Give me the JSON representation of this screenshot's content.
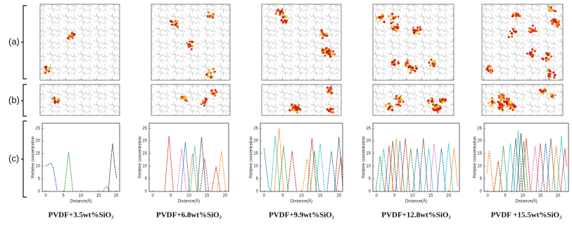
{
  "panel_labels": [
    "(a)",
    "(b)",
    "(c)"
  ],
  "chart_data": [
    {
      "type": "line",
      "title": "PVDF+3.5wt%SiO₂",
      "x_label": "Distance(Å)",
      "y_label": "Relative concentration",
      "xlim": [
        -1,
        21
      ],
      "xticks": [
        0,
        5,
        10,
        15,
        20
      ],
      "ylim": [
        0,
        27
      ],
      "yticks": [
        0,
        5,
        10,
        15,
        20,
        25
      ],
      "series": [
        {
          "color": "#1f5fa8",
          "x": [
            0,
            0.5,
            1,
            1.6,
            2.2,
            2.8,
            3.2
          ],
          "values": [
            10,
            10.5,
            11,
            11,
            9,
            4,
            0.5
          ]
        },
        {
          "color": "#2ca02c",
          "x": [
            5.3,
            5.9,
            6.5,
            7.1,
            7.7
          ],
          "values": [
            0,
            8,
            15.5,
            8,
            0
          ]
        },
        {
          "color": "#777777",
          "x": [
            16.1,
            16.7,
            17.3,
            17.9,
            18.5
          ],
          "values": [
            0,
            1,
            2,
            1,
            0
          ]
        },
        {
          "color": "#333333",
          "x": [
            17.8,
            18.4,
            19,
            19.6,
            20.2
          ],
          "values": [
            0,
            10,
            19,
            10,
            5
          ]
        }
      ]
    },
    {
      "type": "line",
      "title": "PVDF+6.8wt%SiO₂",
      "x_label": "Distance(Å)",
      "y_label": "Relative concentration",
      "xlim": [
        -1,
        21
      ],
      "xticks": [
        0,
        5,
        10,
        15,
        20
      ],
      "ylim": [
        0,
        27
      ],
      "yticks": [
        0,
        5,
        10,
        15,
        20,
        25
      ],
      "series": [
        {
          "color": "#d62728",
          "x": [
            3.3,
            3.9,
            4.5,
            5.1,
            5.7
          ],
          "values": [
            0,
            11,
            22,
            11,
            0
          ]
        },
        {
          "color": "#e377c2",
          "x": [
            6.8,
            7.4,
            8,
            8.6,
            9.2
          ],
          "values": [
            0,
            9,
            17,
            9,
            0
          ]
        },
        {
          "color": "#1f77b4",
          "x": [
            7.8,
            8.4,
            9,
            9.6,
            10.2
          ],
          "values": [
            0,
            10,
            19.5,
            10,
            0
          ]
        },
        {
          "color": "#ff7f0e",
          "x": [
            9.8,
            10.4,
            11,
            11.6,
            12.2
          ],
          "values": [
            0,
            8,
            15,
            8,
            0
          ]
        },
        {
          "color": "#17becf",
          "x": [
            10.4,
            11,
            11.6,
            12.2,
            12.8
          ],
          "values": [
            0,
            9,
            18,
            9,
            0
          ]
        },
        {
          "color": "#444444",
          "x": [
            12.3,
            12.9,
            13.5,
            14.1,
            14.7
          ],
          "values": [
            0,
            11,
            21.5,
            11,
            0
          ]
        },
        {
          "color": "#8c564b",
          "x": [
            13.1,
            13.7,
            14.3,
            14.9,
            15.5
          ],
          "values": [
            0,
            7,
            13,
            7,
            0
          ]
        },
        {
          "color": "#d62728",
          "x": [
            16.3,
            16.9,
            17.5,
            18.1,
            18.7
          ],
          "values": [
            0,
            5,
            10,
            5,
            0
          ]
        },
        {
          "color": "#ff9f1c",
          "x": [
            17.8,
            18.4,
            19,
            19.6,
            20.2
          ],
          "values": [
            0,
            8,
            16,
            8,
            0
          ]
        }
      ]
    },
    {
      "type": "line",
      "title": "PVDF+9.9wt%SiO₂",
      "x_label": "Distance(Å)",
      "y_label": "Relative concentration",
      "xlim": [
        -1,
        21
      ],
      "xticks": [
        0,
        5,
        10,
        15,
        20
      ],
      "ylim": [
        0,
        27
      ],
      "yticks": [
        0,
        5,
        10,
        15,
        20,
        25
      ],
      "series": [
        {
          "color": "#1f77b4",
          "x": [
            0,
            0.6,
            1.2,
            1.8
          ],
          "values": [
            17,
            9,
            2,
            0
          ]
        },
        {
          "color": "#17becf",
          "x": [
            1.8,
            2.4,
            3,
            3.6,
            4.2
          ],
          "values": [
            0,
            11,
            22,
            11,
            0
          ]
        },
        {
          "color": "#ff7f0e",
          "x": [
            2.8,
            3.4,
            4,
            4.6,
            5.2
          ],
          "values": [
            0,
            13,
            25,
            13,
            0
          ]
        },
        {
          "color": "#2ca02c",
          "x": [
            4,
            4.6,
            5.2,
            5.8,
            6.4
          ],
          "values": [
            0,
            9,
            18,
            9,
            0
          ]
        },
        {
          "color": "#d62728",
          "x": [
            6.3,
            6.9,
            7.5,
            8.1,
            8.7
          ],
          "values": [
            0,
            8,
            16,
            8,
            0
          ]
        },
        {
          "color": "#ff9f1c",
          "x": [
            10.3,
            10.9,
            11.5,
            12.1,
            12.7
          ],
          "values": [
            0,
            7,
            13,
            7,
            0
          ]
        },
        {
          "color": "#b22222",
          "x": [
            11.6,
            12.2,
            12.8,
            13.4,
            14
          ],
          "values": [
            0,
            11,
            21,
            11,
            0
          ]
        },
        {
          "color": "#2ca02c",
          "x": [
            12.3,
            12.9,
            13.5,
            14.1,
            14.7
          ],
          "values": [
            0,
            8,
            16,
            8,
            0
          ]
        },
        {
          "color": "#17becf",
          "x": [
            13.8,
            14.4,
            15,
            15.6,
            16.2
          ],
          "values": [
            0,
            10,
            19,
            10,
            0
          ]
        },
        {
          "color": "#1f77b4",
          "x": [
            16.8,
            17.4,
            18,
            18.6,
            19.2
          ],
          "values": [
            0,
            8,
            16,
            8,
            0
          ]
        },
        {
          "color": "#444444",
          "x": [
            18.8,
            19.4,
            20,
            20.6,
            21
          ],
          "values": [
            0,
            11,
            21.5,
            11,
            2
          ]
        },
        {
          "color": "#d62728",
          "x": [
            19.3,
            19.9,
            20.5,
            21
          ],
          "values": [
            0,
            7,
            14,
            8
          ]
        }
      ]
    },
    {
      "type": "line",
      "title": "PVDF+12.8wt%SiO₂",
      "x_label": "Distance(Å)",
      "y_label": "Relative concentration",
      "xlim": [
        -1,
        23
      ],
      "xticks": [
        0,
        5,
        10,
        15,
        20
      ],
      "ylim": [
        0,
        27
      ],
      "yticks": [
        0,
        5,
        10,
        15,
        20,
        25
      ],
      "series": [
        {
          "color": "#2ca02c",
          "x": [
            -0.2,
            0.4,
            1,
            1.6,
            2.2
          ],
          "values": [
            0,
            7,
            14,
            7,
            0
          ]
        },
        {
          "color": "#17becf",
          "x": [
            0.8,
            1.4,
            2,
            2.6,
            3.2
          ],
          "values": [
            0,
            9,
            17,
            9,
            0
          ]
        },
        {
          "color": "#d62728",
          "x": [
            2.3,
            2.9,
            3.5,
            4.1,
            4.7
          ],
          "values": [
            0,
            9,
            18,
            9,
            0
          ]
        },
        {
          "color": "#555555",
          "x": [
            3.3,
            3.9,
            4.5,
            5.1,
            5.7
          ],
          "values": [
            0,
            10,
            20,
            10,
            0
          ]
        },
        {
          "color": "#ff7f0e",
          "x": [
            4.3,
            4.9,
            5.5,
            6.1,
            6.7
          ],
          "values": [
            0,
            11,
            21,
            11,
            0
          ]
        },
        {
          "color": "#1f77b4",
          "x": [
            5.3,
            5.9,
            6.5,
            7.1,
            7.7
          ],
          "values": [
            0,
            10,
            20,
            10,
            0
          ]
        },
        {
          "color": "#d62728",
          "x": [
            6.8,
            7.4,
            8,
            8.6,
            9.2
          ],
          "values": [
            0,
            11,
            21,
            11,
            0
          ]
        },
        {
          "color": "#2ca02c",
          "x": [
            8.3,
            8.9,
            9.5,
            10.1,
            10.7
          ],
          "values": [
            0,
            9,
            17,
            9,
            0
          ]
        },
        {
          "color": "#1f77b4",
          "x": [
            10.1,
            10.7,
            11.3,
            11.9,
            12.5
          ],
          "values": [
            0,
            9,
            17,
            9,
            0
          ]
        },
        {
          "color": "#555555",
          "x": [
            11.8,
            12.4,
            13,
            13.6,
            14.2
          ],
          "values": [
            0,
            11,
            21,
            11,
            0
          ]
        },
        {
          "color": "#17becf",
          "x": [
            13.3,
            13.9,
            14.5,
            15.1,
            15.7
          ],
          "values": [
            0,
            9,
            17,
            9,
            0
          ]
        },
        {
          "color": "#e377c2",
          "x": [
            14.8,
            15.4,
            16,
            16.6,
            17.2
          ],
          "values": [
            0,
            10,
            19,
            10,
            0
          ]
        },
        {
          "color": "#1f77b4",
          "x": [
            16.8,
            17.4,
            18,
            18.6,
            19.2
          ],
          "values": [
            0,
            9,
            17,
            9,
            0
          ]
        },
        {
          "color": "#17becf",
          "x": [
            18.8,
            19.4,
            20,
            20.6,
            21.2
          ],
          "values": [
            0,
            10,
            19,
            10,
            0
          ]
        },
        {
          "color": "#ff7f0e",
          "x": [
            20.3,
            20.9,
            21.5,
            22.1,
            22.5
          ],
          "values": [
            0,
            9,
            17,
            9,
            2
          ]
        }
      ]
    },
    {
      "type": "line",
      "title": "PVDF +15.5wt%SiO₂",
      "x_label": "Distance(Å)",
      "y_label": "Relative concentration",
      "xlim": [
        -1,
        23
      ],
      "xticks": [
        0,
        5,
        10,
        15,
        20
      ],
      "ylim": [
        0,
        27
      ],
      "yticks": [
        0,
        5,
        10,
        15,
        20,
        25
      ],
      "series": [
        {
          "color": "#ff7f0e",
          "x": [
            -0.2,
            0.3,
            0.5,
            1.1,
            1.7
          ],
          "values": [
            7,
            14,
            16,
            8,
            0
          ]
        },
        {
          "color": "#d62728",
          "x": [
            1.8,
            2.4,
            3,
            3.6,
            4.2
          ],
          "values": [
            0,
            6,
            12,
            6,
            0
          ]
        },
        {
          "color": "#2ca02c",
          "x": [
            3.3,
            3.9,
            4.5,
            5.1,
            5.7
          ],
          "values": [
            0,
            9,
            18,
            9,
            0
          ]
        },
        {
          "color": "#17becf",
          "x": [
            5.3,
            5.9,
            6.5,
            7.1,
            7.7
          ],
          "values": [
            0,
            10,
            19,
            10,
            0
          ]
        },
        {
          "color": "#555555",
          "x": [
            6.8,
            7.4,
            8,
            8.6,
            9.2
          ],
          "values": [
            0,
            11,
            21,
            11,
            0
          ]
        },
        {
          "color": "#17becf",
          "x": [
            7.5,
            8.1,
            8.7,
            9.3,
            9.9
          ],
          "values": [
            0,
            12,
            24,
            12,
            0
          ]
        },
        {
          "color": "#333333",
          "x": [
            8.3,
            8.9,
            9.5,
            10.1,
            10.7
          ],
          "values": [
            0,
            12,
            23,
            12,
            0
          ]
        },
        {
          "color": "#2ca02c",
          "x": [
            9.1,
            9.7,
            10.3,
            10.9,
            11.5
          ],
          "values": [
            0,
            10,
            20,
            10,
            0
          ]
        },
        {
          "color": "#d62728",
          "x": [
            9.8,
            10.4,
            11,
            11.6,
            12.2
          ],
          "values": [
            0,
            11,
            21,
            11,
            0
          ]
        },
        {
          "color": "#e377c2",
          "x": [
            12.3,
            12.9,
            13.5,
            14.1,
            14.7
          ],
          "values": [
            0,
            9,
            18,
            9,
            0
          ]
        },
        {
          "color": "#d62728",
          "x": [
            13.8,
            14.4,
            15,
            15.6,
            16.2
          ],
          "values": [
            0,
            10,
            19,
            10,
            0
          ]
        },
        {
          "color": "#1f77b4",
          "x": [
            15.3,
            15.9,
            16.5,
            17.1,
            17.7
          ],
          "values": [
            0,
            10,
            19,
            10,
            0
          ]
        },
        {
          "color": "#555555",
          "x": [
            16.8,
            17.4,
            18,
            18.6,
            19.2
          ],
          "values": [
            0,
            11,
            21,
            11,
            0
          ]
        },
        {
          "color": "#ff7f0e",
          "x": [
            18.3,
            18.9,
            19.5,
            20.1,
            20.7
          ],
          "values": [
            0,
            9,
            18,
            9,
            0
          ]
        },
        {
          "color": "#17becf",
          "x": [
            19.8,
            20.4,
            21,
            21.6,
            22.2
          ],
          "values": [
            0,
            11,
            22,
            11,
            0
          ]
        },
        {
          "color": "#d62728",
          "x": [
            20.8,
            21.4,
            22,
            22.5
          ],
          "values": [
            0,
            9,
            17,
            10
          ]
        }
      ]
    }
  ]
}
